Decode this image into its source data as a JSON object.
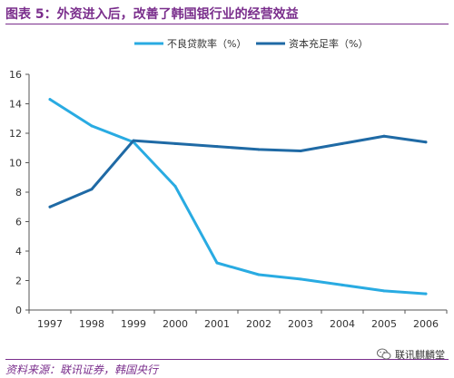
{
  "figure_title": "图表 5：外资进入后，改善了韩国银行业的经营效益",
  "source_note": "资料来源：联讯证券，韩国央行",
  "watermark": {
    "text": "联讯麒麟堂",
    "icon": "wechat-icon"
  },
  "colors": {
    "title": "#7a2e8c",
    "series_npl": "#29abe2",
    "series_capital": "#1f6aa5",
    "axis": "#555555"
  },
  "chart_data": {
    "type": "line",
    "title": "",
    "xlabel": "",
    "ylabel": "",
    "x": [
      "1997",
      "1998",
      "1999",
      "2000",
      "2001",
      "2002",
      "2003",
      "2004",
      "2005",
      "2006"
    ],
    "ylim": [
      0,
      16
    ],
    "yticks": [
      "0",
      "2",
      "4",
      "6",
      "8",
      "10",
      "12",
      "14",
      "16"
    ],
    "grid": false,
    "legend_position": "top-center",
    "series": [
      {
        "name": "不良贷款率（%）",
        "color": "#29abe2",
        "values": [
          14.3,
          12.5,
          11.4,
          8.4,
          3.2,
          2.4,
          2.1,
          1.7,
          1.3,
          1.1
        ]
      },
      {
        "name": "资本充足率（%）",
        "color": "#1f6aa5",
        "values": [
          7.0,
          8.2,
          11.5,
          11.3,
          11.1,
          10.9,
          10.8,
          11.3,
          11.8,
          11.4
        ]
      }
    ]
  }
}
